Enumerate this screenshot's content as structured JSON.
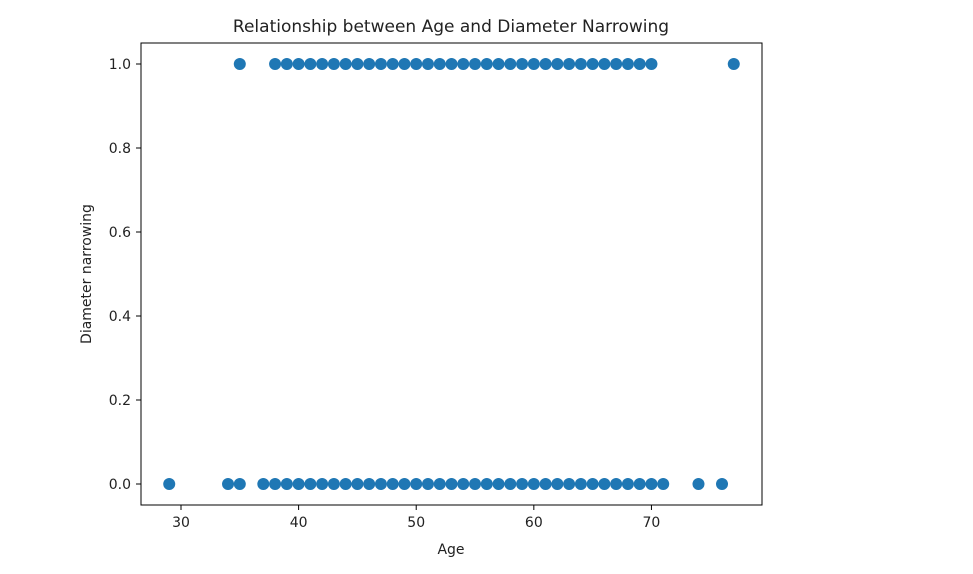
{
  "chart_data": {
    "type": "scatter",
    "title": "Relationship between Age and Diameter Narrowing",
    "xlabel": "Age",
    "ylabel": "Diameter narrowing",
    "xlim": [
      26.6,
      79.4
    ],
    "ylim": [
      -0.05,
      1.05
    ],
    "xticks": [
      30,
      40,
      50,
      60,
      70
    ],
    "yticks": [
      0.0,
      0.2,
      0.4,
      0.6,
      0.8,
      1.0
    ],
    "xtick_labels": [
      "30",
      "40",
      "50",
      "60",
      "70"
    ],
    "ytick_labels": [
      "0.0",
      "0.2",
      "0.4",
      "0.6",
      "0.8",
      "1.0"
    ],
    "grid": false,
    "marker_color": "#1f77b4",
    "series": [
      {
        "name": "",
        "points": [
          {
            "x": 29,
            "y": 0
          },
          {
            "x": 34,
            "y": 0
          },
          {
            "x": 35,
            "y": 0
          },
          {
            "x": 37,
            "y": 0
          },
          {
            "x": 38,
            "y": 0
          },
          {
            "x": 39,
            "y": 0
          },
          {
            "x": 40,
            "y": 0
          },
          {
            "x": 41,
            "y": 0
          },
          {
            "x": 42,
            "y": 0
          },
          {
            "x": 43,
            "y": 0
          },
          {
            "x": 44,
            "y": 0
          },
          {
            "x": 45,
            "y": 0
          },
          {
            "x": 46,
            "y": 0
          },
          {
            "x": 47,
            "y": 0
          },
          {
            "x": 48,
            "y": 0
          },
          {
            "x": 49,
            "y": 0
          },
          {
            "x": 50,
            "y": 0
          },
          {
            "x": 51,
            "y": 0
          },
          {
            "x": 52,
            "y": 0
          },
          {
            "x": 53,
            "y": 0
          },
          {
            "x": 54,
            "y": 0
          },
          {
            "x": 55,
            "y": 0
          },
          {
            "x": 56,
            "y": 0
          },
          {
            "x": 57,
            "y": 0
          },
          {
            "x": 58,
            "y": 0
          },
          {
            "x": 59,
            "y": 0
          },
          {
            "x": 60,
            "y": 0
          },
          {
            "x": 61,
            "y": 0
          },
          {
            "x": 62,
            "y": 0
          },
          {
            "x": 63,
            "y": 0
          },
          {
            "x": 64,
            "y": 0
          },
          {
            "x": 65,
            "y": 0
          },
          {
            "x": 66,
            "y": 0
          },
          {
            "x": 67,
            "y": 0
          },
          {
            "x": 68,
            "y": 0
          },
          {
            "x": 69,
            "y": 0
          },
          {
            "x": 70,
            "y": 0
          },
          {
            "x": 71,
            "y": 0
          },
          {
            "x": 74,
            "y": 0
          },
          {
            "x": 76,
            "y": 0
          },
          {
            "x": 35,
            "y": 1
          },
          {
            "x": 38,
            "y": 1
          },
          {
            "x": 39,
            "y": 1
          },
          {
            "x": 40,
            "y": 1
          },
          {
            "x": 41,
            "y": 1
          },
          {
            "x": 42,
            "y": 1
          },
          {
            "x": 43,
            "y": 1
          },
          {
            "x": 44,
            "y": 1
          },
          {
            "x": 45,
            "y": 1
          },
          {
            "x": 46,
            "y": 1
          },
          {
            "x": 47,
            "y": 1
          },
          {
            "x": 48,
            "y": 1
          },
          {
            "x": 49,
            "y": 1
          },
          {
            "x": 50,
            "y": 1
          },
          {
            "x": 51,
            "y": 1
          },
          {
            "x": 52,
            "y": 1
          },
          {
            "x": 53,
            "y": 1
          },
          {
            "x": 54,
            "y": 1
          },
          {
            "x": 55,
            "y": 1
          },
          {
            "x": 56,
            "y": 1
          },
          {
            "x": 57,
            "y": 1
          },
          {
            "x": 58,
            "y": 1
          },
          {
            "x": 59,
            "y": 1
          },
          {
            "x": 60,
            "y": 1
          },
          {
            "x": 61,
            "y": 1
          },
          {
            "x": 62,
            "y": 1
          },
          {
            "x": 63,
            "y": 1
          },
          {
            "x": 64,
            "y": 1
          },
          {
            "x": 65,
            "y": 1
          },
          {
            "x": 66,
            "y": 1
          },
          {
            "x": 67,
            "y": 1
          },
          {
            "x": 68,
            "y": 1
          },
          {
            "x": 69,
            "y": 1
          },
          {
            "x": 70,
            "y": 1
          },
          {
            "x": 77,
            "y": 1
          }
        ]
      }
    ]
  }
}
